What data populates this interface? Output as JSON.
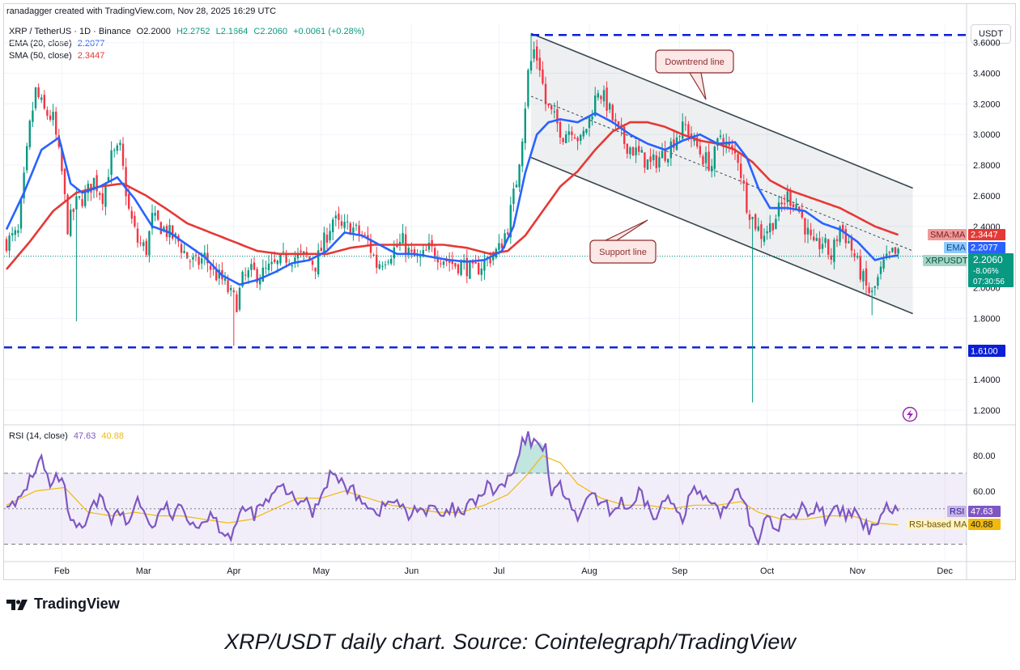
{
  "credit": "ranadagger created with TradingView.com, Nov 28, 2025 16:29 UTC",
  "header": {
    "symbol": "XRP / TetherUS · 1D · Binance",
    "open": "O2.2000",
    "high": "H2.2752",
    "low": "L2.1664",
    "close": "C2.2060",
    "change": "+0.0061 (+0.28%)",
    "ema_label": "EMA (20, close)",
    "ema_value": "2.2077",
    "sma_label": "SMA (50, close)",
    "sma_value": "2.3447",
    "rsi_label": "RSI (14, close)",
    "rsi_value": "47.63",
    "rsi_ma_value": "40.88"
  },
  "currency_button": "USDT",
  "colors": {
    "ema": "#2962ff",
    "sma": "#e53935",
    "rsi": "#7e57c2",
    "rsi_ma": "#f0b90b",
    "up": "#089981",
    "down": "#f23645",
    "level": "#0b1fd6",
    "channel": "#37474f"
  },
  "annotations": {
    "downtrend": "Downtrend line",
    "support": "Support line"
  },
  "price_badges": {
    "sma_tag": "SMA:MA",
    "sma_value": "2.3447",
    "ema_tag": "EMA",
    "ema_value": "2.2077",
    "sym_tag": "XRPUSDT",
    "price": "2.2060",
    "pct": "-8.06%",
    "countdown": "07:30:56",
    "level": "1.6100"
  },
  "rsi_badges": {
    "rsi_tag": "RSI",
    "rsi_value": "47.63",
    "ma_tag": "RSI-based MA",
    "ma_value": "40.88"
  },
  "footer": {
    "logo": "TradingView"
  },
  "caption": "XRP/USDT daily chart. Source: Cointelegraph/TradingView",
  "chart_data": {
    "type": "candlestick",
    "symbol": "XRPUSDT",
    "interval": "1D",
    "price_axis": {
      "ticks": [
        "3.6000",
        "3.4000",
        "3.2000",
        "3.0000",
        "2.8000",
        "2.6000",
        "2.4000",
        "2.2000",
        "2.0000",
        "1.8000",
        "1.6000",
        "1.4000",
        "1.2000"
      ],
      "ylim": [
        1.12,
        3.72
      ]
    },
    "rsi_axis": {
      "ticks": [
        "80.00",
        "60.00"
      ],
      "ylim": [
        22,
        96
      ],
      "bands": [
        30,
        50,
        70
      ]
    },
    "x_labels": [
      "Feb",
      "Mar",
      "Apr",
      "May",
      "Jun",
      "Jul",
      "Aug",
      "Sep",
      "Oct",
      "Nov",
      "Dec"
    ],
    "x_label_days": [
      19,
      47,
      78,
      108,
      139,
      169,
      200,
      231,
      261,
      292,
      322
    ],
    "horizontal_levels": [
      3.65,
      1.61
    ],
    "channel": {
      "upper": {
        "from": [
          180,
          3.66
        ],
        "to": [
          311,
          2.65
        ]
      },
      "lower": {
        "from": [
          180,
          2.85
        ],
        "to": [
          311,
          1.83
        ]
      },
      "mid": {
        "from": [
          180,
          3.25
        ],
        "to": [
          311,
          2.24
        ]
      }
    },
    "price_keys": [
      [
        0,
        2.3
      ],
      [
        4,
        2.35
      ],
      [
        8,
        3.05
      ],
      [
        10,
        3.28
      ],
      [
        13,
        3.15
      ],
      [
        16,
        3.1
      ],
      [
        19,
        2.75
      ],
      [
        21,
        2.4
      ],
      [
        24,
        2.55
      ],
      [
        27,
        2.6
      ],
      [
        30,
        2.7
      ],
      [
        33,
        2.6
      ],
      [
        36,
        2.85
      ],
      [
        39,
        2.9
      ],
      [
        42,
        2.5
      ],
      [
        45,
        2.3
      ],
      [
        48,
        2.25
      ],
      [
        50,
        2.45
      ],
      [
        53,
        2.4
      ],
      [
        56,
        2.35
      ],
      [
        59,
        2.3
      ],
      [
        62,
        2.2
      ],
      [
        65,
        2.15
      ],
      [
        68,
        2.2
      ],
      [
        71,
        2.1
      ],
      [
        74,
        2.05
      ],
      [
        77,
        1.95
      ],
      [
        79,
        1.9
      ],
      [
        81,
        2.05
      ],
      [
        84,
        2.1
      ],
      [
        87,
        2.08
      ],
      [
        90,
        2.12
      ],
      [
        93,
        2.15
      ],
      [
        96,
        2.2
      ],
      [
        100,
        2.2
      ],
      [
        103,
        2.2
      ],
      [
        106,
        2.15
      ],
      [
        109,
        2.3
      ],
      [
        112,
        2.45
      ],
      [
        115,
        2.38
      ],
      [
        118,
        2.4
      ],
      [
        121,
        2.35
      ],
      [
        124,
        2.3
      ],
      [
        127,
        2.15
      ],
      [
        130,
        2.2
      ],
      [
        133,
        2.25
      ],
      [
        136,
        2.3
      ],
      [
        139,
        2.2
      ],
      [
        142,
        2.18
      ],
      [
        145,
        2.25
      ],
      [
        148,
        2.22
      ],
      [
        151,
        2.18
      ],
      [
        154,
        2.15
      ],
      [
        157,
        2.15
      ],
      [
        160,
        2.1
      ],
      [
        163,
        2.15
      ],
      [
        166,
        2.2
      ],
      [
        169,
        2.25
      ],
      [
        172,
        2.4
      ],
      [
        175,
        2.7
      ],
      [
        177,
        3.0
      ],
      [
        179,
        3.4
      ],
      [
        181,
        3.55
      ],
      [
        183,
        3.45
      ],
      [
        185,
        3.2
      ],
      [
        188,
        3.1
      ],
      [
        191,
        3.0
      ],
      [
        194,
        3.05
      ],
      [
        197,
        2.95
      ],
      [
        200,
        3.1
      ],
      [
        203,
        3.3
      ],
      [
        206,
        3.2
      ],
      [
        209,
        3.05
      ],
      [
        212,
        2.95
      ],
      [
        215,
        2.9
      ],
      [
        218,
        2.85
      ],
      [
        221,
        2.8
      ],
      [
        224,
        2.85
      ],
      [
        227,
        2.9
      ],
      [
        230,
        3.0
      ],
      [
        233,
        3.05
      ],
      [
        236,
        2.95
      ],
      [
        239,
        2.85
      ],
      [
        242,
        2.8
      ],
      [
        245,
        3.0
      ],
      [
        248,
        2.9
      ],
      [
        251,
        2.85
      ],
      [
        254,
        2.55
      ],
      [
        256,
        2.45
      ],
      [
        259,
        2.35
      ],
      [
        262,
        2.4
      ],
      [
        265,
        2.5
      ],
      [
        268,
        2.6
      ],
      [
        271,
        2.55
      ],
      [
        274,
        2.4
      ],
      [
        277,
        2.25
      ],
      [
        280,
        2.3
      ],
      [
        283,
        2.2
      ],
      [
        286,
        2.4
      ],
      [
        289,
        2.3
      ],
      [
        292,
        2.15
      ],
      [
        295,
        2.0
      ],
      [
        297,
        1.95
      ],
      [
        299,
        2.05
      ],
      [
        301,
        2.15
      ],
      [
        304,
        2.22
      ],
      [
        306,
        2.21
      ]
    ],
    "ema20_keys": [
      [
        0,
        2.38
      ],
      [
        6,
        2.62
      ],
      [
        12,
        2.9
      ],
      [
        18,
        2.98
      ],
      [
        22,
        2.68
      ],
      [
        26,
        2.62
      ],
      [
        32,
        2.66
      ],
      [
        38,
        2.72
      ],
      [
        44,
        2.58
      ],
      [
        50,
        2.4
      ],
      [
        56,
        2.36
      ],
      [
        62,
        2.28
      ],
      [
        68,
        2.2
      ],
      [
        74,
        2.08
      ],
      [
        80,
        2.02
      ],
      [
        86,
        2.05
      ],
      [
        92,
        2.1
      ],
      [
        98,
        2.16
      ],
      [
        104,
        2.18
      ],
      [
        110,
        2.24
      ],
      [
        116,
        2.36
      ],
      [
        122,
        2.34
      ],
      [
        128,
        2.28
      ],
      [
        134,
        2.22
      ],
      [
        140,
        2.22
      ],
      [
        146,
        2.2
      ],
      [
        152,
        2.18
      ],
      [
        158,
        2.17
      ],
      [
        164,
        2.18
      ],
      [
        170,
        2.24
      ],
      [
        174,
        2.4
      ],
      [
        178,
        2.75
      ],
      [
        182,
        3.0
      ],
      [
        186,
        3.08
      ],
      [
        190,
        3.1
      ],
      [
        196,
        3.08
      ],
      [
        202,
        3.14
      ],
      [
        208,
        3.08
      ],
      [
        214,
        3.0
      ],
      [
        220,
        2.94
      ],
      [
        226,
        2.9
      ],
      [
        232,
        2.96
      ],
      [
        238,
        3.0
      ],
      [
        244,
        2.94
      ],
      [
        250,
        2.95
      ],
      [
        254,
        2.85
      ],
      [
        258,
        2.65
      ],
      [
        262,
        2.52
      ],
      [
        268,
        2.52
      ],
      [
        274,
        2.5
      ],
      [
        280,
        2.42
      ],
      [
        286,
        2.38
      ],
      [
        292,
        2.3
      ],
      [
        298,
        2.18
      ],
      [
        302,
        2.2
      ],
      [
        306,
        2.21
      ]
    ],
    "sma50_keys": [
      [
        0,
        2.12
      ],
      [
        8,
        2.3
      ],
      [
        16,
        2.5
      ],
      [
        24,
        2.62
      ],
      [
        32,
        2.66
      ],
      [
        40,
        2.68
      ],
      [
        48,
        2.6
      ],
      [
        56,
        2.5
      ],
      [
        62,
        2.42
      ],
      [
        70,
        2.36
      ],
      [
        78,
        2.3
      ],
      [
        86,
        2.24
      ],
      [
        94,
        2.22
      ],
      [
        102,
        2.22
      ],
      [
        110,
        2.22
      ],
      [
        118,
        2.26
      ],
      [
        126,
        2.28
      ],
      [
        134,
        2.28
      ],
      [
        142,
        2.28
      ],
      [
        150,
        2.28
      ],
      [
        158,
        2.26
      ],
      [
        166,
        2.22
      ],
      [
        172,
        2.24
      ],
      [
        178,
        2.34
      ],
      [
        184,
        2.5
      ],
      [
        190,
        2.66
      ],
      [
        196,
        2.76
      ],
      [
        202,
        2.9
      ],
      [
        208,
        3.02
      ],
      [
        214,
        3.08
      ],
      [
        220,
        3.08
      ],
      [
        226,
        3.05
      ],
      [
        232,
        3.0
      ],
      [
        238,
        2.96
      ],
      [
        244,
        2.94
      ],
      [
        250,
        2.9
      ],
      [
        256,
        2.82
      ],
      [
        262,
        2.7
      ],
      [
        268,
        2.64
      ],
      [
        274,
        2.6
      ],
      [
        280,
        2.56
      ],
      [
        286,
        2.52
      ],
      [
        292,
        2.46
      ],
      [
        298,
        2.4
      ],
      [
        306,
        2.3447
      ]
    ],
    "rsi_keys": [
      [
        0,
        55
      ],
      [
        3,
        50
      ],
      [
        6,
        60
      ],
      [
        9,
        70
      ],
      [
        12,
        78
      ],
      [
        15,
        62
      ],
      [
        18,
        68
      ],
      [
        20,
        60
      ],
      [
        22,
        42
      ],
      [
        24,
        38
      ],
      [
        27,
        40
      ],
      [
        30,
        52
      ],
      [
        33,
        56
      ],
      [
        36,
        45
      ],
      [
        39,
        48
      ],
      [
        42,
        40
      ],
      [
        45,
        58
      ],
      [
        48,
        44
      ],
      [
        51,
        40
      ],
      [
        54,
        52
      ],
      [
        57,
        46
      ],
      [
        60,
        50
      ],
      [
        63,
        45
      ],
      [
        66,
        40
      ],
      [
        70,
        48
      ],
      [
        74,
        38
      ],
      [
        77,
        35
      ],
      [
        79,
        42
      ],
      [
        82,
        50
      ],
      [
        85,
        47
      ],
      [
        88,
        52
      ],
      [
        91,
        56
      ],
      [
        94,
        62
      ],
      [
        97,
        60
      ],
      [
        99,
        52
      ],
      [
        102,
        56
      ],
      [
        105,
        48
      ],
      [
        108,
        58
      ],
      [
        111,
        70
      ],
      [
        114,
        66
      ],
      [
        117,
        62
      ],
      [
        120,
        58
      ],
      [
        123,
        55
      ],
      [
        126,
        48
      ],
      [
        129,
        50
      ],
      [
        132,
        55
      ],
      [
        135,
        52
      ],
      [
        138,
        45
      ],
      [
        141,
        52
      ],
      [
        144,
        48
      ],
      [
        147,
        50
      ],
      [
        150,
        44
      ],
      [
        153,
        50
      ],
      [
        156,
        46
      ],
      [
        159,
        52
      ],
      [
        162,
        56
      ],
      [
        165,
        62
      ],
      [
        168,
        60
      ],
      [
        171,
        64
      ],
      [
        174,
        70
      ],
      [
        177,
        86
      ],
      [
        179,
        90
      ],
      [
        181,
        86
      ],
      [
        183,
        88
      ],
      [
        185,
        84
      ],
      [
        187,
        60
      ],
      [
        190,
        62
      ],
      [
        193,
        56
      ],
      [
        196,
        40
      ],
      [
        199,
        58
      ],
      [
        202,
        55
      ],
      [
        205,
        52
      ],
      [
        208,
        48
      ],
      [
        211,
        55
      ],
      [
        214,
        47
      ],
      [
        217,
        58
      ],
      [
        220,
        52
      ],
      [
        223,
        44
      ],
      [
        226,
        56
      ],
      [
        229,
        52
      ],
      [
        232,
        46
      ],
      [
        235,
        60
      ],
      [
        238,
        58
      ],
      [
        241,
        52
      ],
      [
        244,
        48
      ],
      [
        247,
        50
      ],
      [
        250,
        62
      ],
      [
        253,
        58
      ],
      [
        255,
        42
      ],
      [
        258,
        34
      ],
      [
        261,
        44
      ],
      [
        264,
        38
      ],
      [
        267,
        46
      ],
      [
        270,
        44
      ],
      [
        273,
        54
      ],
      [
        276,
        46
      ],
      [
        279,
        52
      ],
      [
        282,
        42
      ],
      [
        285,
        50
      ],
      [
        288,
        46
      ],
      [
        291,
        48
      ],
      [
        294,
        40
      ],
      [
        297,
        38
      ],
      [
        299,
        45
      ],
      [
        302,
        52
      ],
      [
        306,
        47.63
      ]
    ],
    "rsi_ma_keys": [
      [
        0,
        52
      ],
      [
        10,
        60
      ],
      [
        20,
        62
      ],
      [
        28,
        48
      ],
      [
        36,
        46
      ],
      [
        44,
        48
      ],
      [
        52,
        46
      ],
      [
        60,
        46
      ],
      [
        68,
        44
      ],
      [
        76,
        42
      ],
      [
        84,
        44
      ],
      [
        92,
        50
      ],
      [
        100,
        56
      ],
      [
        108,
        56
      ],
      [
        116,
        60
      ],
      [
        124,
        56
      ],
      [
        132,
        52
      ],
      [
        140,
        50
      ],
      [
        148,
        48
      ],
      [
        156,
        48
      ],
      [
        164,
        52
      ],
      [
        172,
        58
      ],
      [
        178,
        68
      ],
      [
        184,
        80
      ],
      [
        190,
        76
      ],
      [
        196,
        64
      ],
      [
        204,
        56
      ],
      [
        212,
        52
      ],
      [
        220,
        52
      ],
      [
        228,
        50
      ],
      [
        236,
        52
      ],
      [
        244,
        52
      ],
      [
        252,
        54
      ],
      [
        258,
        48
      ],
      [
        266,
        44
      ],
      [
        274,
        44
      ],
      [
        282,
        46
      ],
      [
        290,
        46
      ],
      [
        298,
        42
      ],
      [
        306,
        40.88
      ]
    ]
  }
}
